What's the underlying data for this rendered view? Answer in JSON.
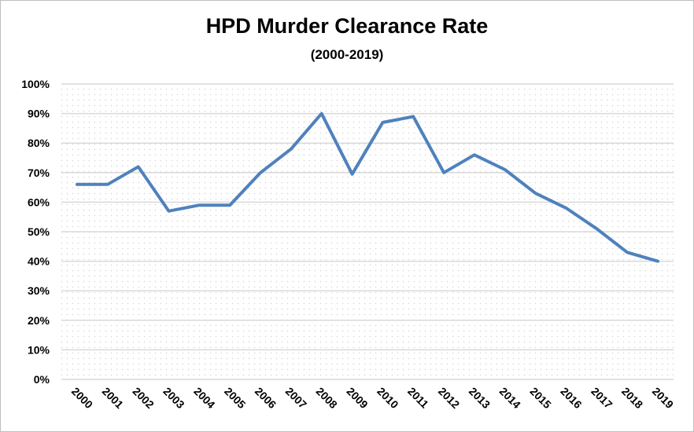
{
  "chart_data": {
    "type": "line",
    "title": "HPD Murder Clearance Rate",
    "subtitle": "(2000-2019)",
    "xlabel": "",
    "ylabel": "",
    "x": [
      "2000",
      "2001",
      "2002",
      "2003",
      "2004",
      "2005",
      "2006",
      "2007",
      "2008",
      "2009",
      "2010",
      "2011",
      "2012",
      "2013",
      "2014",
      "2015",
      "2016",
      "2017",
      "2018",
      "2019"
    ],
    "series": [
      {
        "values": [
          66,
          66,
          72,
          57,
          59,
          59,
          70,
          78,
          90,
          69.5,
          87,
          89,
          70,
          76,
          71,
          63,
          58,
          51,
          43,
          40
        ],
        "color": "#4f81bd"
      }
    ],
    "y_ticks": [
      "0%",
      "10%",
      "20%",
      "30%",
      "40%",
      "50%",
      "60%",
      "70%",
      "80%",
      "90%",
      "100%"
    ],
    "ylim": [
      0,
      100
    ],
    "grid": true,
    "legend": "none",
    "plot_background": "dotted-light-gray"
  }
}
